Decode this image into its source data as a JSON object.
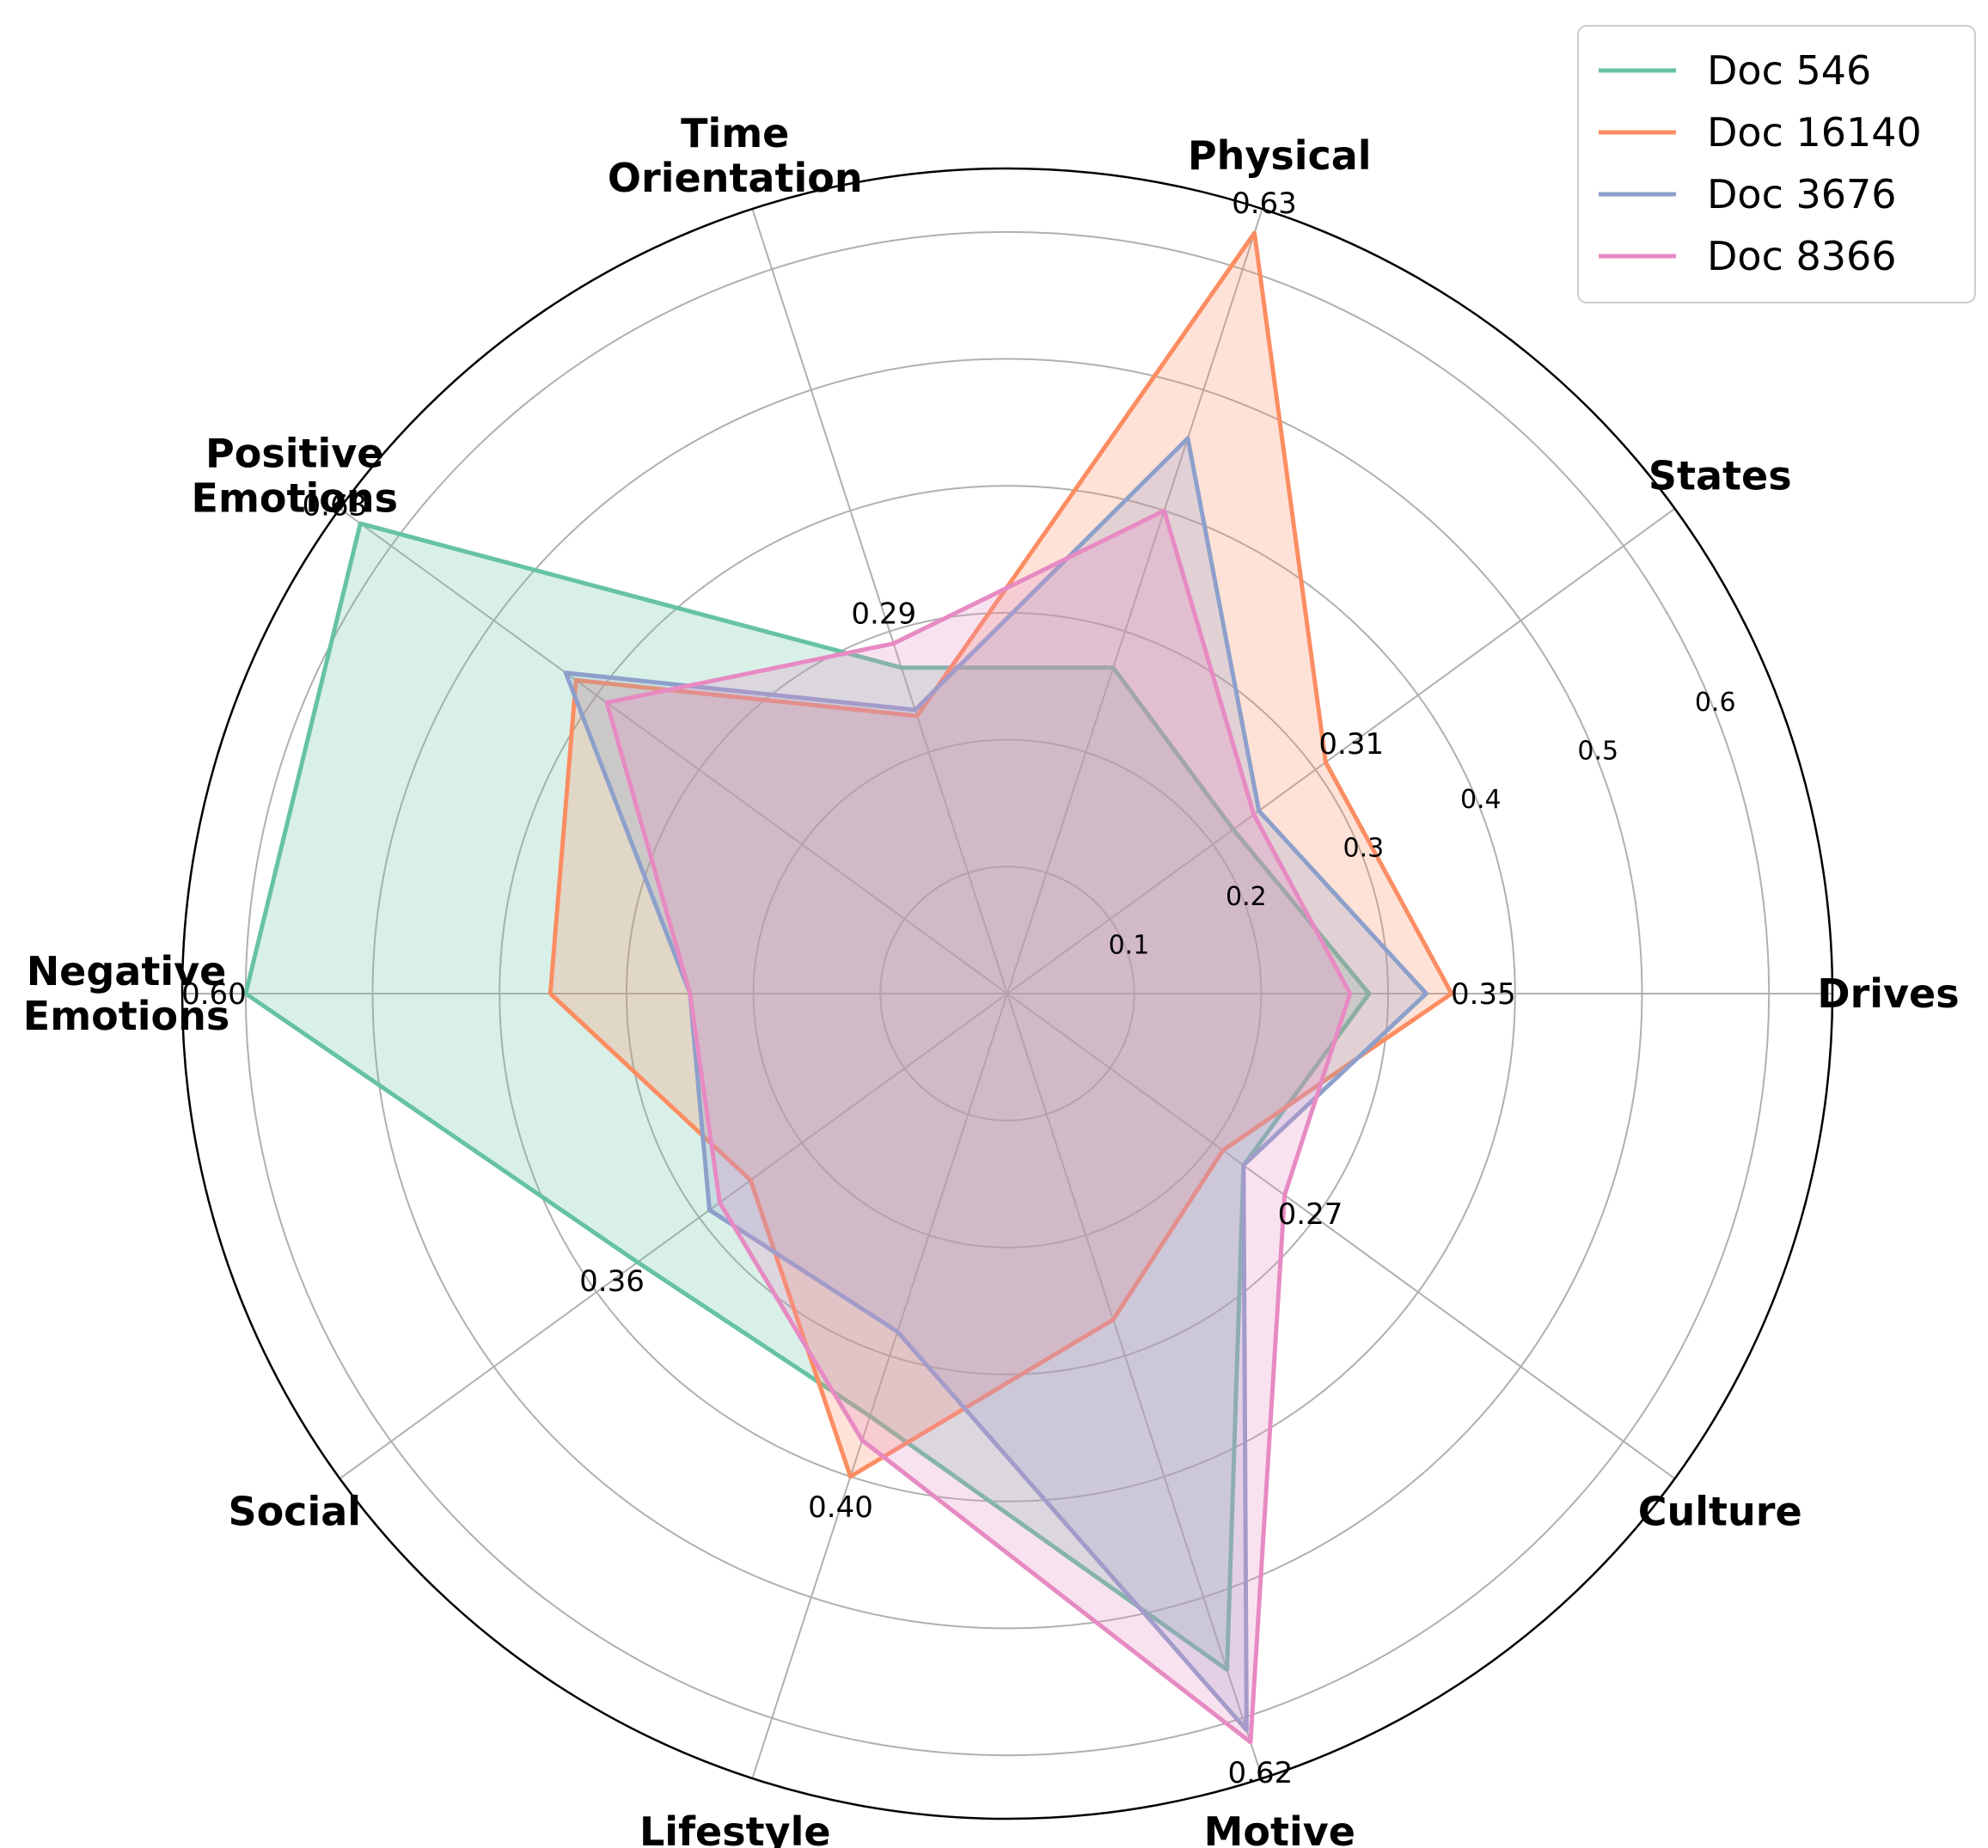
{
  "chart_data": {
    "type": "radar",
    "axes": [
      "Drives",
      "States",
      "Physical",
      "Time\nOrientation",
      "Positive\nEmotions",
      "Negative\nEmotions",
      "Social",
      "Lifestyle",
      "Motive",
      "Culture"
    ],
    "radial_ticks": [
      0.1,
      0.2,
      0.3,
      0.4,
      0.5,
      0.6
    ],
    "rlim": [
      0,
      0.65
    ],
    "grid": true,
    "legend_position": "top-right",
    "series": [
      {
        "name": "Doc 546",
        "color": "#66c2a5",
        "values": [
          0.285,
          0.22,
          0.27,
          0.27,
          0.63,
          0.6,
          0.36,
          0.35,
          0.56,
          0.23
        ]
      },
      {
        "name": "Doc 16140",
        "color": "#fc8d62",
        "values": [
          0.35,
          0.31,
          0.63,
          0.23,
          0.42,
          0.36,
          0.25,
          0.4,
          0.27,
          0.21
        ]
      },
      {
        "name": "Doc 3676",
        "color": "#8da0cb",
        "values": [
          0.33,
          0.245,
          0.46,
          0.235,
          0.43,
          0.25,
          0.29,
          0.28,
          0.61,
          0.23
        ]
      },
      {
        "name": "Doc 8366",
        "color": "#e78ac3",
        "values": [
          0.27,
          0.24,
          0.4,
          0.29,
          0.39,
          0.25,
          0.28,
          0.37,
          0.62,
          0.27
        ]
      }
    ],
    "data_labels": [
      {
        "axis": 0,
        "text": "0.35"
      },
      {
        "axis": 1,
        "text": "0.31"
      },
      {
        "axis": 2,
        "text": "0.63"
      },
      {
        "axis": 3,
        "text": "0.29"
      },
      {
        "axis": 4,
        "text": "0.63"
      },
      {
        "axis": 5,
        "text": "0.60"
      },
      {
        "axis": 6,
        "text": "0.36"
      },
      {
        "axis": 7,
        "text": "0.40"
      },
      {
        "axis": 8,
        "text": "0.62"
      },
      {
        "axis": 9,
        "text": "0.27"
      }
    ]
  }
}
